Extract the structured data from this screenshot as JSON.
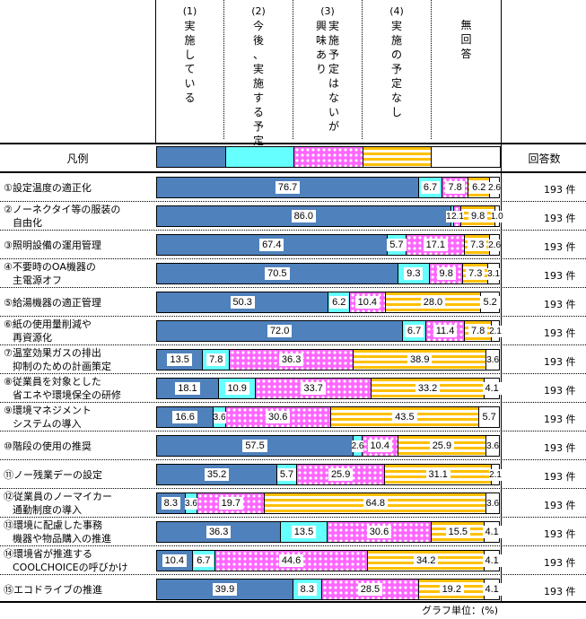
{
  "chart_data": {
    "type": "bar",
    "orientation": "horizontal",
    "stacked": "percent",
    "title": "",
    "unit_note": "グラフ単位：(%)",
    "legend_label": "凡例",
    "count_header": "回答数",
    "series": [
      {
        "name": "(1) 実施している",
        "color": "#4f81bd"
      },
      {
        "name": "(2) 今後、実施する予定",
        "color": "#66ffff"
      },
      {
        "name": "(3) 実施予定はないが興味あり",
        "color": "#ff66ff"
      },
      {
        "name": "(4) 実施の予定なし",
        "color": "#ffc000"
      },
      {
        "name": "無回答",
        "color": "#ffffff"
      }
    ],
    "categories": [
      "①設定温度の適正化",
      "②ノーネクタイ等の服装の自由化",
      "③照明設備の運用管理",
      "④不要時のOA機器の主電源オフ",
      "⑤給湯機器の適正管理",
      "⑥紙の使用量削減や再資源化",
      "⑦温室効果ガスの排出抑制のための計画策定",
      "⑧従業員を対象とした省エネや環境保全の研修",
      "⑨環境マネジメントシステムの導入",
      "⑩階段の使用の推奨",
      "⑪ノー残業デーの設定",
      "⑫従業員のノーマイカー通勤制度の導入",
      "⑬環境に配慮した事務機器や物品購入の推進",
      "⑭環境省が推進するCOOLCHOICEの呼びかけ",
      "⑮エコドライブの推進"
    ],
    "values": [
      [
        76.7,
        6.7,
        7.8,
        6.2,
        2.6
      ],
      [
        86.0,
        1.0,
        2.1,
        9.8,
        1.0
      ],
      [
        67.4,
        5.7,
        17.1,
        7.3,
        2.6
      ],
      [
        70.5,
        9.3,
        9.8,
        7.3,
        3.1
      ],
      [
        50.3,
        6.2,
        10.4,
        28.0,
        5.2
      ],
      [
        72.0,
        6.7,
        11.4,
        7.8,
        2.1
      ],
      [
        13.5,
        7.8,
        36.3,
        38.9,
        3.6
      ],
      [
        18.1,
        10.9,
        33.7,
        33.2,
        4.1
      ],
      [
        16.6,
        3.6,
        30.6,
        43.5,
        5.7
      ],
      [
        57.5,
        2.6,
        10.4,
        25.9,
        3.6
      ],
      [
        35.2,
        5.7,
        25.9,
        31.1,
        2.1
      ],
      [
        8.3,
        3.6,
        19.7,
        64.8,
        3.6
      ],
      [
        36.3,
        13.5,
        30.6,
        15.5,
        4.1
      ],
      [
        10.4,
        6.7,
        44.6,
        34.2,
        4.1
      ],
      [
        39.9,
        8.3,
        28.5,
        19.2,
        4.1
      ]
    ],
    "counts": [
      "193 件",
      "193 件",
      "193 件",
      "193 件",
      "193 件",
      "193 件",
      "193 件",
      "193 件",
      "193 件",
      "193 件",
      "193 件",
      "193 件",
      "193 件",
      "193 件",
      "193 件"
    ],
    "xlim": [
      0,
      100
    ]
  },
  "header": {
    "columns": [
      {
        "num": "(1)",
        "lines": [
          "実施している"
        ]
      },
      {
        "num": "(2)",
        "lines": [
          "今後、実施する予定"
        ]
      },
      {
        "num": "(3)",
        "lines": [
          "実施予定はないが",
          "興味あり"
        ]
      },
      {
        "num": "(4)",
        "lines": [
          "実施の予定なし"
        ]
      },
      {
        "num": "",
        "lines": [
          "無回答"
        ]
      }
    ]
  },
  "rows": [
    {
      "line1": "①設定温度の適正化",
      "line2": ""
    },
    {
      "line1": "②ノーネクタイ等の服装の",
      "line2": "自由化"
    },
    {
      "line1": "③照明設備の運用管理",
      "line2": ""
    },
    {
      "line1": "④不要時のOA機器の",
      "line2": "主電源オフ"
    },
    {
      "line1": "⑤給湯機器の適正管理",
      "line2": ""
    },
    {
      "line1": "⑥紙の使用量削減や",
      "line2": "再資源化"
    },
    {
      "line1": "⑦温室効果ガスの排出",
      "line2": "抑制のための計画策定"
    },
    {
      "line1": "⑧従業員を対象とした",
      "line2": "省エネや環境保全の研修"
    },
    {
      "line1": "⑨環境マネジメント",
      "line2": "システムの導入"
    },
    {
      "line1": "⑩階段の使用の推奨",
      "line2": ""
    },
    {
      "line1": "⑪ノー残業デーの設定",
      "line2": ""
    },
    {
      "line1": "⑫従業員のノーマイカー",
      "line2": "通勤制度の導入"
    },
    {
      "line1": "⑬環境に配慮した事務",
      "line2": "機器や物品購入の推進"
    },
    {
      "line1": "⑭環境省が推進する",
      "line2": "COOLCHOICEの呼びかけ"
    },
    {
      "line1": "⑮エコドライブの推進",
      "line2": ""
    }
  ]
}
